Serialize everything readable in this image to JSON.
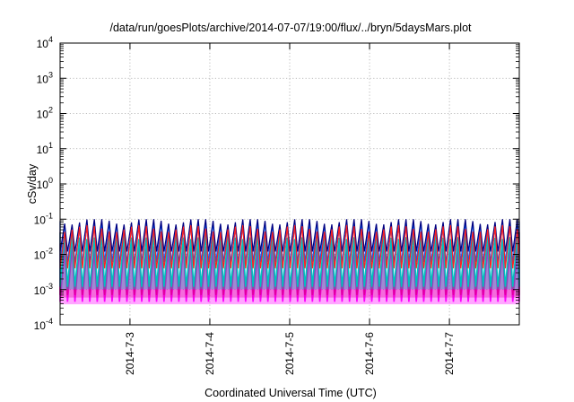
{
  "chart_data": {
    "type": "area",
    "title": "/data/run/goesPlots/archive/2014-07-07/19:00/flux/../bryn/5daysMars.plot",
    "xlabel": "Coordinated Universal Time (UTC)",
    "ylabel": "cSv/day",
    "xrange": [
      "2014-07-02 03:00",
      "2014-07-07 21:00"
    ],
    "x_ticks": [
      "2014-7-3",
      "2014-7-4",
      "2014-7-5",
      "2014-7-6",
      "2014-7-7"
    ],
    "y_scale": "log",
    "ylim": [
      0.0001,
      10000
    ],
    "y_ticks": [
      {
        "base": "10",
        "exp": "-4"
      },
      {
        "base": "10",
        "exp": "-3"
      },
      {
        "base": "10",
        "exp": "-2"
      },
      {
        "base": "10",
        "exp": "-1"
      },
      {
        "base": "10",
        "exp": "0"
      },
      {
        "base": "10",
        "exp": "1"
      },
      {
        "base": "10",
        "exp": "2"
      },
      {
        "base": "10",
        "exp": "3"
      },
      {
        "base": "10",
        "exp": "4"
      }
    ],
    "grid": true,
    "oscillation_period_hours": 2.23,
    "series": [
      {
        "color": "#ff00ff",
        "peak": 0.013,
        "trough": 0.00045
      },
      {
        "color": "#e0009c",
        "peak": 0.02,
        "trough": 0.0007
      },
      {
        "color": "#00c0c0",
        "peak": 0.035,
        "trough": 0.0012
      },
      {
        "color": "#0060ff",
        "peak": 0.07,
        "trough": 0.006
      },
      {
        "color": "#000080",
        "peak": 0.09,
        "trough": 0.012
      },
      {
        "color": "#ff2020",
        "peak": 0.055,
        "trough": 0.004
      }
    ]
  }
}
